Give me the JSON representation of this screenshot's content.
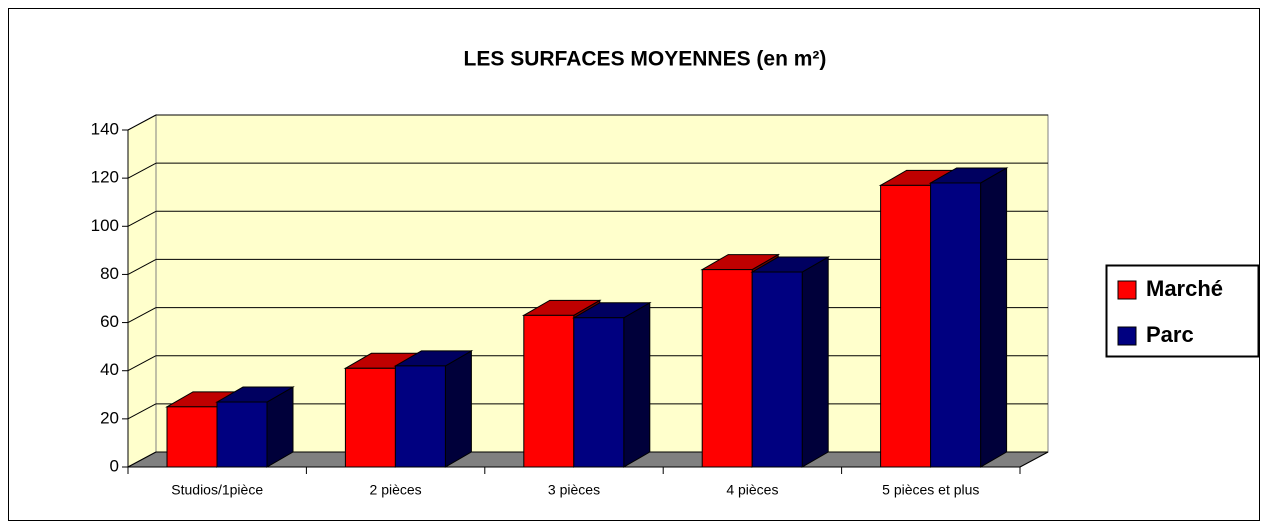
{
  "chart_data": {
    "type": "bar3d",
    "title": "LES SURFACES MOYENNES (en m²)",
    "categories": [
      "Studios/1pièce",
      "2 pièces",
      "3 pièces",
      "4 pièces",
      "5 pièces et plus"
    ],
    "series": [
      {
        "name": "Marché",
        "color": "#ff0000",
        "values": [
          25,
          41,
          63,
          82,
          117
        ]
      },
      {
        "name": "Parc",
        "color": "#000080",
        "values": [
          27,
          42,
          62,
          81,
          118
        ]
      }
    ],
    "ylim": [
      0,
      140
    ],
    "yticks": [
      0,
      20,
      40,
      60,
      80,
      100,
      120,
      140
    ],
    "grid": true,
    "legend": "right"
  }
}
